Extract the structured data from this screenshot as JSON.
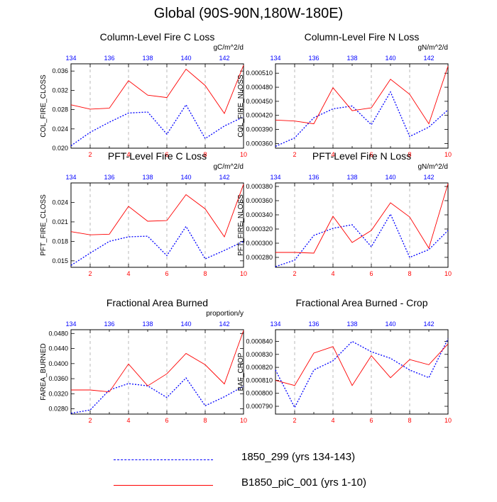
{
  "title": "Global (90S-90N,180W-180E)",
  "colors": {
    "series1": "#0000ff",
    "series2": "#ff0000",
    "grid": "#aaaaaa",
    "top_ticks": "#0000ff",
    "bottom_ticks": "#ff0000"
  },
  "legend": [
    {
      "label": "1850_299 (yrs 134-143)",
      "color": "#0000ff",
      "style": "dashed"
    },
    {
      "label": "B1850_piC_001 (yrs 1-10)",
      "color": "#ff0000",
      "style": "solid"
    }
  ],
  "chart_data": [
    {
      "type": "line",
      "title": "Column-Level Fire C Loss",
      "units": "gC/m^2/d",
      "ylabel": "COL_FIRE_CLOSS",
      "ylim": [
        0.02,
        0.0375
      ],
      "yticks": [
        0.02,
        0.024,
        0.028,
        0.032,
        0.036
      ],
      "ytick_labels": [
        "0.020",
        "0.024",
        "0.028",
        "0.032",
        "0.036"
      ],
      "bottom_x": [
        1,
        2,
        3,
        4,
        5,
        6,
        7,
        8,
        9,
        10
      ],
      "bottom_tick_labels": [
        "2",
        "4",
        "6",
        "8",
        "10"
      ],
      "top_tick_labels": [
        "134",
        "136",
        "138",
        "140",
        "142"
      ],
      "series": [
        {
          "name": "1850_299 (yrs 134-143)",
          "values": [
            0.0205,
            0.0233,
            0.0254,
            0.0273,
            0.0275,
            0.0229,
            0.029,
            0.022,
            0.0246,
            0.0265
          ]
        },
        {
          "name": "B1850_piC_001 (yrs 1-10)",
          "values": [
            0.029,
            0.0281,
            0.0283,
            0.034,
            0.031,
            0.0305,
            0.0364,
            0.033,
            0.0272,
            0.0372
          ]
        }
      ]
    },
    {
      "type": "line",
      "title": "Column-Level Fire N Loss",
      "units": "gN/m^2/d",
      "ylabel": "COL_FIRE_NLOSS",
      "ylim": [
        0.00035,
        0.00053
      ],
      "yticks": [
        0.00036,
        0.00039,
        0.00042,
        0.00045,
        0.00048,
        0.00051
      ],
      "ytick_labels": [
        "0.000360",
        "0.000390",
        "0.000420",
        "0.000450",
        "0.000480",
        "0.000510"
      ],
      "bottom_x": [
        1,
        2,
        3,
        4,
        5,
        6,
        7,
        8,
        9,
        10
      ],
      "bottom_tick_labels": [
        "2",
        "4",
        "6",
        "8",
        "10"
      ],
      "top_tick_labels": [
        "134",
        "136",
        "138",
        "140",
        "142"
      ],
      "series": [
        {
          "name": "1850_299 (yrs 134-143)",
          "values": [
            0.000354,
            0.000372,
            0.000415,
            0.000434,
            0.00044,
            0.0004,
            0.00047,
            0.000375,
            0.000395,
            0.000432
          ]
        },
        {
          "name": "B1850_piC_001 (yrs 1-10)",
          "values": [
            0.00041,
            0.000408,
            0.000402,
            0.000479,
            0.00043,
            0.000436,
            0.000497,
            0.000465,
            0.000402,
            0.000525
          ]
        }
      ]
    },
    {
      "type": "line",
      "title": "PFT-Level Fire C Loss",
      "units": "gC/m^2/d",
      "ylabel": "PFT_FIRE_CLOSS",
      "ylim": [
        0.014,
        0.027
      ],
      "yticks": [
        0.015,
        0.018,
        0.021,
        0.024
      ],
      "ytick_labels": [
        "0.015",
        "0.018",
        "0.021",
        "0.024"
      ],
      "bottom_x": [
        1,
        2,
        3,
        4,
        5,
        6,
        7,
        8,
        9,
        10
      ],
      "bottom_tick_labels": [
        "2",
        "4",
        "6",
        "8",
        "10"
      ],
      "top_tick_labels": [
        "134",
        "136",
        "138",
        "140",
        "142"
      ],
      "series": [
        {
          "name": "1850_299 (yrs 134-143)",
          "values": [
            0.0143,
            0.0162,
            0.018,
            0.0187,
            0.0188,
            0.0158,
            0.0203,
            0.0153,
            0.0166,
            0.018
          ]
        },
        {
          "name": "B1850_piC_001 (yrs 1-10)",
          "values": [
            0.0195,
            0.019,
            0.0191,
            0.0234,
            0.0211,
            0.0212,
            0.0252,
            0.023,
            0.0187,
            0.0268
          ]
        }
      ]
    },
    {
      "type": "line",
      "title": "PFT-Level Fire N Loss",
      "units": "gN/m^2/d",
      "ylabel": "PFT_FIRE_NLOSS",
      "ylim": [
        0.000266,
        0.000385
      ],
      "yticks": [
        0.00028,
        0.0003,
        0.00032,
        0.00034,
        0.00036,
        0.00038
      ],
      "ytick_labels": [
        "0.000280",
        "0.000300",
        "0.000320",
        "0.000340",
        "0.000360",
        "0.000380"
      ],
      "bottom_x": [
        1,
        2,
        3,
        4,
        5,
        6,
        7,
        8,
        9,
        10
      ],
      "bottom_tick_labels": [
        "2",
        "4",
        "6",
        "8",
        "10"
      ],
      "top_tick_labels": [
        "134",
        "136",
        "138",
        "140",
        "142"
      ],
      "series": [
        {
          "name": "1850_299 (yrs 134-143)",
          "values": [
            0.000267,
            0.000276,
            0.000311,
            0.000321,
            0.000326,
            0.000295,
            0.000341,
            0.00028,
            0.000291,
            0.000318
          ]
        },
        {
          "name": "B1850_piC_001 (yrs 1-10)",
          "values": [
            0.000287,
            0.000287,
            0.000286,
            0.000338,
            0.000301,
            0.000318,
            0.000357,
            0.000337,
            0.000293,
            0.000384
          ]
        }
      ]
    },
    {
      "type": "line",
      "title": "Fractional Area Burned",
      "units": "proportion/y",
      "ylabel": "FAREA_BURNED",
      "ylim": [
        0.0266,
        0.049
      ],
      "yticks": [
        0.028,
        0.032,
        0.036,
        0.04,
        0.044,
        0.048
      ],
      "ytick_labels": [
        "0.0280",
        "0.0320",
        "0.0360",
        "0.0400",
        "0.0440",
        "0.0480"
      ],
      "bottom_x": [
        1,
        2,
        3,
        4,
        5,
        6,
        7,
        8,
        9,
        10
      ],
      "bottom_tick_labels": [
        "2",
        "4",
        "6",
        "8",
        "10"
      ],
      "top_tick_labels": [
        "134",
        "136",
        "138",
        "140",
        "142"
      ],
      "series": [
        {
          "name": "1850_299 (yrs 134-143)",
          "values": [
            0.0268,
            0.0277,
            0.033,
            0.0347,
            0.0341,
            0.031,
            0.0362,
            0.0288,
            0.0312,
            0.034
          ]
        },
        {
          "name": "B1850_piC_001 (yrs 1-10)",
          "values": [
            0.033,
            0.033,
            0.0325,
            0.0399,
            0.0341,
            0.0373,
            0.0427,
            0.0397,
            0.0346,
            0.0488
          ]
        }
      ]
    },
    {
      "type": "line",
      "title": "Fractional Area Burned - Crop",
      "units": "",
      "ylabel": "BAF_CROP",
      "ylim": [
        0.000784,
        0.000849
      ],
      "yticks": [
        0.00079,
        0.0008,
        0.00081,
        0.00082,
        0.00083,
        0.00084
      ],
      "ytick_labels": [
        "0.000790",
        "0.000800",
        "0.000810",
        "0.000820",
        "0.000830",
        "0.000840"
      ],
      "bottom_x": [
        1,
        2,
        3,
        4,
        5,
        6,
        7,
        8,
        9,
        10
      ],
      "bottom_tick_labels": [
        "2",
        "4",
        "6",
        "8",
        "10"
      ],
      "top_tick_labels": [
        "134",
        "136",
        "138",
        "140",
        "142"
      ],
      "series": [
        {
          "name": "1850_299 (yrs 134-143)",
          "values": [
            0.000818,
            0.000789,
            0.000818,
            0.000825,
            0.00084,
            0.000832,
            0.000827,
            0.000818,
            0.000812,
            0.000842
          ]
        },
        {
          "name": "B1850_piC_001 (yrs 1-10)",
          "values": [
            0.00081,
            0.000806,
            0.000831,
            0.000836,
            0.000806,
            0.000829,
            0.000812,
            0.000826,
            0.000822,
            0.000838
          ]
        }
      ]
    }
  ]
}
